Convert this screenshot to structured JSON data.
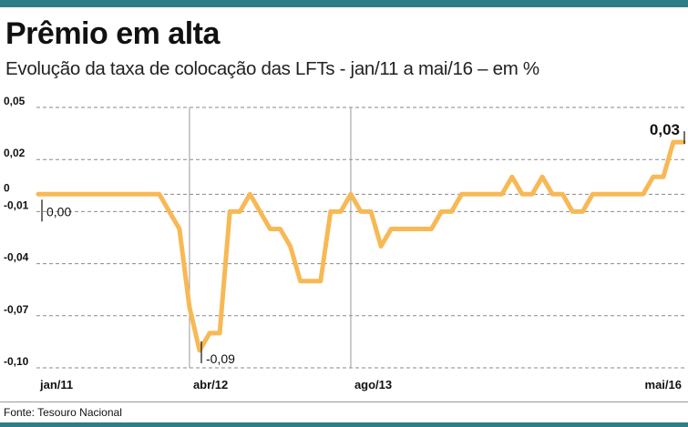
{
  "header": {
    "title": "Prêmio em alta",
    "subtitle": "Evolução da taxa de colocação das LFTs  - jan/11 a mai/16 – em %"
  },
  "footer": {
    "source": "Fonte: Tesouro Nacional"
  },
  "colors": {
    "line": "#f7b955",
    "accent_bar": "#2f7d86",
    "grid": "#8a8a8a"
  },
  "chart_data": {
    "type": "line",
    "title": "Prêmio em alta",
    "subtitle": "Evolução da taxa de colocação das LFTs  - jan/11 a mai/16 – em %",
    "ylim": [
      -0.1,
      0.05
    ],
    "y_ticks": [
      0.05,
      0.02,
      0,
      -0.01,
      -0.04,
      -0.07,
      -0.1
    ],
    "y_tick_labels": [
      "0,05",
      "0,02",
      "0",
      "-0,01",
      "-0,04",
      "-0,07",
      "-0,10"
    ],
    "x_tick_labels": [
      "jan/11",
      "abr/12",
      "ago/13",
      "mai/16"
    ],
    "x_tick_index": [
      0,
      15,
      31,
      64
    ],
    "grid": "horizontal dashed",
    "annotations": [
      {
        "label": "0,00",
        "index": 0,
        "value": 0.0
      },
      {
        "label": "-0,09",
        "index": 16,
        "value": -0.09
      },
      {
        "label": "0,03",
        "index": 64,
        "value": 0.03
      }
    ],
    "series": [
      {
        "values": [
          0,
          0,
          0,
          0,
          0,
          0,
          0,
          0,
          0,
          0,
          0,
          0,
          0,
          -0.01,
          -0.02,
          -0.065,
          -0.09,
          -0.08,
          -0.08,
          -0.01,
          -0.01,
          0,
          -0.01,
          -0.02,
          -0.02,
          -0.03,
          -0.05,
          -0.05,
          -0.05,
          -0.01,
          -0.01,
          0,
          -0.01,
          -0.01,
          -0.03,
          -0.02,
          -0.02,
          -0.02,
          -0.02,
          -0.02,
          -0.01,
          -0.01,
          0,
          0,
          0,
          0,
          0,
          0.01,
          0,
          0,
          0.01,
          0,
          0,
          -0.01,
          -0.01,
          0,
          0,
          0,
          0,
          0,
          0,
          0.01,
          0.01,
          0.03,
          0.03
        ]
      }
    ]
  }
}
